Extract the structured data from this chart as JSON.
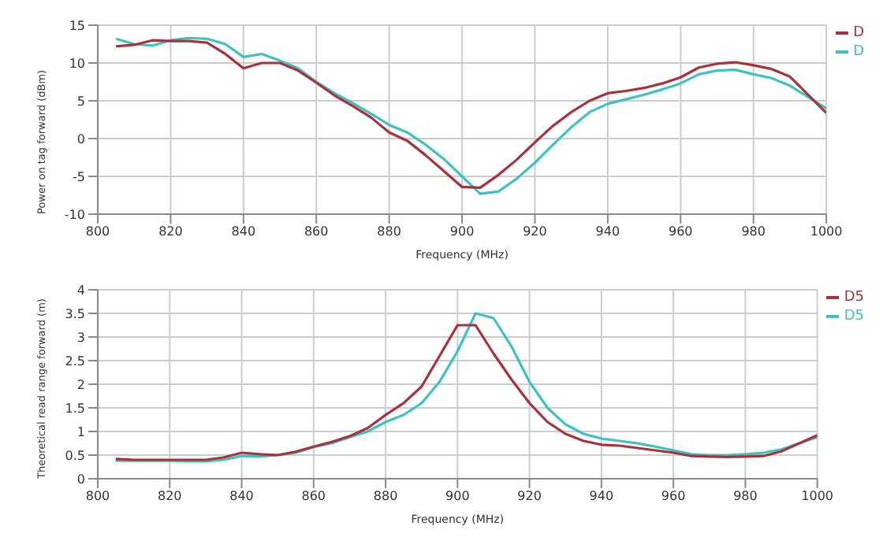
{
  "chart_data": [
    {
      "type": "line",
      "xlabel": "Frequency (MHz)",
      "ylabel": "Power on tag forward (dBm)",
      "x": [
        805,
        810,
        815,
        820,
        825,
        830,
        835,
        840,
        845,
        850,
        855,
        860,
        865,
        870,
        875,
        880,
        885,
        890,
        895,
        900,
        905,
        910,
        915,
        920,
        925,
        930,
        935,
        940,
        945,
        950,
        955,
        960,
        965,
        970,
        975,
        980,
        985,
        990,
        995,
        1000
      ],
      "series": [
        {
          "name": "D",
          "color": "#3fc1c0",
          "values": [
            13.2,
            12.5,
            12.3,
            13,
            13.3,
            13.2,
            12.5,
            10.8,
            11.2,
            10.3,
            9.3,
            7.5,
            6,
            4.7,
            3.3,
            1.8,
            0.8,
            -0.8,
            -2.7,
            -5,
            -7.3,
            -7,
            -5.3,
            -3.2,
            -0.8,
            1.5,
            3.5,
            4.6,
            5.2,
            5.8,
            6.5,
            7.3,
            8.5,
            9,
            9.1,
            8.5,
            8,
            7,
            5.5,
            4
          ]
        },
        {
          "name": "D",
          "color": "#a8323a",
          "values": [
            12.2,
            12.4,
            13,
            12.9,
            12.9,
            12.7,
            11.2,
            9.3,
            10,
            10,
            9,
            7.4,
            5.7,
            4.3,
            2.8,
            0.8,
            -0.3,
            -2.2,
            -4.3,
            -6.4,
            -6.5,
            -4.8,
            -2.8,
            -0.5,
            1.7,
            3.5,
            5,
            6,
            6.3,
            6.7,
            7.3,
            8.1,
            9.4,
            9.9,
            10.1,
            9.7,
            9.2,
            8.2,
            5.8,
            3.4
          ]
        }
      ],
      "xlim": [
        800,
        1000
      ],
      "xticks": [
        800,
        820,
        840,
        860,
        880,
        900,
        920,
        940,
        960,
        980,
        1000
      ],
      "ylim": [
        -10,
        15
      ],
      "yticks": [
        -10,
        -5,
        0,
        5,
        10,
        15
      ],
      "grid": true,
      "legend": "top right",
      "marker": "none",
      "line_style": "solid"
    },
    {
      "type": "line",
      "xlabel": "Frequency (MHz)",
      "ylabel": "Theoretical read range forward (m)",
      "x": [
        805,
        810,
        815,
        820,
        825,
        830,
        835,
        840,
        845,
        850,
        855,
        860,
        865,
        870,
        875,
        880,
        885,
        890,
        895,
        900,
        905,
        910,
        915,
        920,
        925,
        930,
        935,
        940,
        945,
        950,
        955,
        960,
        965,
        970,
        975,
        980,
        985,
        990,
        995,
        1000
      ],
      "series": [
        {
          "name": "D5",
          "color": "#3fc1c0",
          "values": [
            0.38,
            0.38,
            0.38,
            0.38,
            0.37,
            0.37,
            0.4,
            0.48,
            0.47,
            0.5,
            0.55,
            0.67,
            0.75,
            0.88,
            1.0,
            1.2,
            1.35,
            1.6,
            2.05,
            2.7,
            3.5,
            3.4,
            2.8,
            2.05,
            1.5,
            1.15,
            0.95,
            0.85,
            0.8,
            0.75,
            0.68,
            0.6,
            0.52,
            0.5,
            0.5,
            0.52,
            0.55,
            0.62,
            0.75,
            0.88
          ]
        },
        {
          "name": "D5",
          "color": "#a8323a",
          "values": [
            0.42,
            0.4,
            0.4,
            0.4,
            0.4,
            0.4,
            0.45,
            0.55,
            0.52,
            0.5,
            0.57,
            0.68,
            0.78,
            0.9,
            1.07,
            1.35,
            1.6,
            1.95,
            2.6,
            3.25,
            3.25,
            2.65,
            2.1,
            1.6,
            1.2,
            0.95,
            0.8,
            0.72,
            0.7,
            0.65,
            0.6,
            0.55,
            0.48,
            0.47,
            0.46,
            0.47,
            0.48,
            0.58,
            0.75,
            0.92
          ]
        }
      ],
      "xlim": [
        800,
        1000
      ],
      "xticks": [
        800,
        820,
        840,
        860,
        880,
        900,
        920,
        940,
        960,
        980,
        1000
      ],
      "ylim": [
        0,
        4
      ],
      "yticks": [
        0,
        0.5,
        1,
        1.5,
        2,
        2.5,
        3,
        3.5,
        4
      ],
      "grid": true,
      "legend": "top right",
      "marker": "none",
      "line_style": "solid"
    }
  ]
}
